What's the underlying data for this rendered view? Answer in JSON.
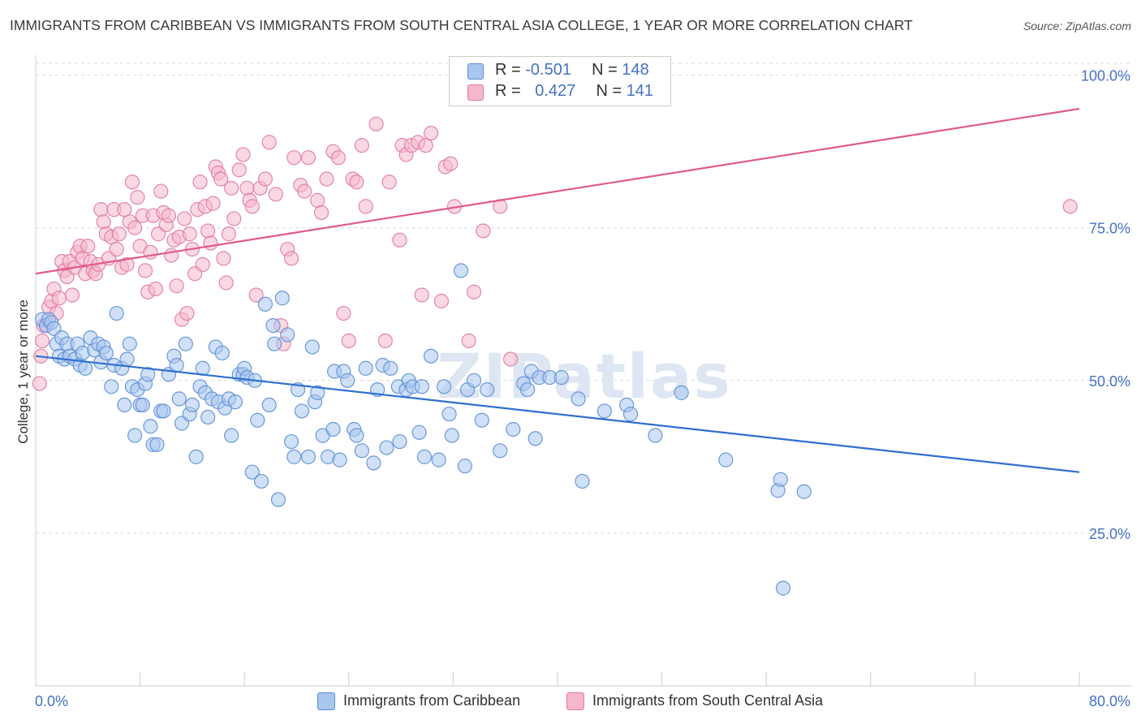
{
  "header": {
    "title": "IMMIGRANTS FROM CARIBBEAN VS IMMIGRANTS FROM SOUTH CENTRAL ASIA COLLEGE, 1 YEAR OR MORE CORRELATION CHART",
    "source": "Source: ZipAtlas.com"
  },
  "watermark": "ZIPatlas",
  "legend": {
    "series": [
      {
        "r_label": "R =",
        "r_value": "-0.501",
        "n_label": "N =",
        "n_value": "148"
      },
      {
        "r_label": "R =",
        "r_value": "0.427",
        "n_label": "N =",
        "n_value": "141"
      }
    ]
  },
  "colors": {
    "blue_fill": "#a9c6ef",
    "blue_stroke": "#5b8fd6",
    "blue_line": "#2e6fd0",
    "pink_fill": "#f5b8cb",
    "pink_stroke": "#e07a9c",
    "pink_line": "#e05a8a",
    "grid": "#d8d8d8",
    "tick_text": "#4472c4"
  },
  "chart_data": {
    "type": "scatter",
    "title": "IMMIGRANTS FROM CARIBBEAN VS IMMIGRANTS FROM SOUTH CENTRAL ASIA COLLEGE, 1 YEAR OR MORE CORRELATION CHART",
    "xlabel": "",
    "ylabel": "College, 1 year or more",
    "xlim": [
      0,
      80
    ],
    "ylim": [
      0,
      105
    ],
    "x_tick_labels": [
      "0.0%",
      "80.0%"
    ],
    "y_ticks": [
      25,
      50,
      75,
      100
    ],
    "y_tick_labels": [
      "25.0%",
      "50.0%",
      "75.0%",
      "100.0%"
    ],
    "grid": true,
    "legend_position": "top-center",
    "series": [
      {
        "name": "Immigrants from Caribbean",
        "color": "#5b8fd6",
        "R": -0.501,
        "N": 148,
        "trend": {
          "x": [
            0,
            80
          ],
          "y": [
            54.0,
            35.0
          ]
        },
        "points": [
          [
            0.5,
            60
          ],
          [
            0.8,
            59
          ],
          [
            1.0,
            60
          ],
          [
            1.2,
            59.5
          ],
          [
            1.4,
            58.5
          ],
          [
            1.6,
            56
          ],
          [
            1.8,
            54
          ],
          [
            2.0,
            57
          ],
          [
            2.2,
            53.5
          ],
          [
            2.4,
            56
          ],
          [
            2.6,
            54
          ],
          [
            3.0,
            53.5
          ],
          [
            3.2,
            56
          ],
          [
            3.4,
            52.5
          ],
          [
            3.6,
            54.5
          ],
          [
            3.8,
            52
          ],
          [
            4.2,
            57
          ],
          [
            4.5,
            55
          ],
          [
            4.8,
            56
          ],
          [
            5.0,
            53
          ],
          [
            5.2,
            55.5
          ],
          [
            5.4,
            54.5
          ],
          [
            5.8,
            49
          ],
          [
            6.0,
            52.5
          ],
          [
            6.2,
            61
          ],
          [
            6.6,
            52
          ],
          [
            6.8,
            46
          ],
          [
            7.0,
            53.5
          ],
          [
            7.2,
            56
          ],
          [
            7.4,
            49
          ],
          [
            7.6,
            41
          ],
          [
            7.8,
            48.5
          ],
          [
            8.0,
            46
          ],
          [
            8.2,
            46
          ],
          [
            8.4,
            49.5
          ],
          [
            8.6,
            51
          ],
          [
            8.8,
            42.5
          ],
          [
            9.0,
            39.5
          ],
          [
            9.3,
            39.5
          ],
          [
            9.6,
            45
          ],
          [
            9.8,
            45
          ],
          [
            10.2,
            51
          ],
          [
            10.6,
            54
          ],
          [
            10.8,
            52.5
          ],
          [
            11.0,
            47
          ],
          [
            11.2,
            43
          ],
          [
            11.5,
            56
          ],
          [
            11.8,
            44.5
          ],
          [
            12.0,
            46
          ],
          [
            12.3,
            37.5
          ],
          [
            12.6,
            49
          ],
          [
            12.8,
            52
          ],
          [
            13.0,
            48
          ],
          [
            13.2,
            44
          ],
          [
            13.5,
            47
          ],
          [
            13.8,
            55.5
          ],
          [
            14.0,
            46.5
          ],
          [
            14.3,
            54.5
          ],
          [
            14.5,
            45.5
          ],
          [
            14.8,
            47
          ],
          [
            15.0,
            41
          ],
          [
            15.3,
            46.5
          ],
          [
            15.6,
            51
          ],
          [
            15.9,
            51
          ],
          [
            16.0,
            52
          ],
          [
            16.2,
            50.5
          ],
          [
            16.6,
            35
          ],
          [
            16.8,
            50
          ],
          [
            17.0,
            43.5
          ],
          [
            17.3,
            33.5
          ],
          [
            17.6,
            62.5
          ],
          [
            17.9,
            46
          ],
          [
            18.2,
            59
          ],
          [
            18.3,
            56
          ],
          [
            18.6,
            30.5
          ],
          [
            18.9,
            63.5
          ],
          [
            19.3,
            57.5
          ],
          [
            19.6,
            40
          ],
          [
            19.8,
            37.5
          ],
          [
            20.1,
            48.5
          ],
          [
            20.4,
            45
          ],
          [
            20.9,
            37.5
          ],
          [
            21.2,
            55.5
          ],
          [
            21.4,
            46.5
          ],
          [
            21.6,
            48
          ],
          [
            22.0,
            41
          ],
          [
            22.4,
            37.5
          ],
          [
            22.8,
            42
          ],
          [
            22.9,
            51.5
          ],
          [
            23.3,
            37
          ],
          [
            23.6,
            51.5
          ],
          [
            23.9,
            50
          ],
          [
            24.4,
            42
          ],
          [
            24.6,
            41
          ],
          [
            25.0,
            38.5
          ],
          [
            25.3,
            52
          ],
          [
            25.9,
            36.5
          ],
          [
            26.2,
            48.5
          ],
          [
            26.6,
            52.5
          ],
          [
            26.9,
            39
          ],
          [
            27.2,
            52
          ],
          [
            27.8,
            49
          ],
          [
            27.9,
            40
          ],
          [
            28.4,
            48.5
          ],
          [
            28.6,
            50
          ],
          [
            28.9,
            49
          ],
          [
            29.4,
            41.5
          ],
          [
            29.6,
            49
          ],
          [
            29.8,
            37.5
          ],
          [
            30.3,
            54
          ],
          [
            30.9,
            37
          ],
          [
            31.3,
            49
          ],
          [
            31.7,
            44.5
          ],
          [
            31.9,
            41
          ],
          [
            32.6,
            68
          ],
          [
            32.9,
            36
          ],
          [
            33.1,
            48.5
          ],
          [
            33.6,
            50
          ],
          [
            34.2,
            43.5
          ],
          [
            34.6,
            48.5
          ],
          [
            35.6,
            38.5
          ],
          [
            36.6,
            42
          ],
          [
            37.4,
            49.5
          ],
          [
            37.7,
            48.5
          ],
          [
            38.0,
            51.5
          ],
          [
            38.3,
            40.5
          ],
          [
            38.6,
            50.5
          ],
          [
            39.4,
            50.5
          ],
          [
            40.3,
            50.5
          ],
          [
            41.6,
            47
          ],
          [
            41.9,
            33.5
          ],
          [
            43.6,
            45
          ],
          [
            45.3,
            46
          ],
          [
            45.6,
            44.5
          ],
          [
            47.5,
            41
          ],
          [
            49.5,
            48
          ],
          [
            52.9,
            37
          ],
          [
            56.9,
            32
          ],
          [
            57.1,
            33.8
          ],
          [
            58.9,
            31.8
          ],
          [
            57.3,
            16
          ]
        ]
      },
      {
        "name": "Immigrants from South Central Asia",
        "color": "#e07a9c",
        "R": 0.427,
        "N": 141,
        "trend": {
          "x": [
            0,
            80
          ],
          "y": [
            67.5,
            94.5
          ]
        },
        "points": [
          [
            0.3,
            49.5
          ],
          [
            0.4,
            54
          ],
          [
            0.5,
            56.5
          ],
          [
            0.6,
            59
          ],
          [
            0.8,
            59
          ],
          [
            1.0,
            62
          ],
          [
            1.2,
            63
          ],
          [
            1.4,
            65
          ],
          [
            1.6,
            61
          ],
          [
            1.8,
            63.5
          ],
          [
            2.0,
            69.5
          ],
          [
            2.2,
            68
          ],
          [
            2.4,
            67
          ],
          [
            2.6,
            69.5
          ],
          [
            2.8,
            64
          ],
          [
            3.0,
            68.5
          ],
          [
            3.2,
            71
          ],
          [
            3.4,
            72
          ],
          [
            3.6,
            70
          ],
          [
            3.8,
            67.5
          ],
          [
            4.0,
            72
          ],
          [
            4.2,
            69.5
          ],
          [
            4.4,
            68
          ],
          [
            4.6,
            67.5
          ],
          [
            4.8,
            69
          ],
          [
            5.0,
            78
          ],
          [
            5.2,
            76
          ],
          [
            5.4,
            74
          ],
          [
            5.6,
            70
          ],
          [
            5.8,
            73.5
          ],
          [
            6.0,
            78
          ],
          [
            6.2,
            71.5
          ],
          [
            6.4,
            74
          ],
          [
            6.6,
            68.5
          ],
          [
            6.8,
            78
          ],
          [
            7.0,
            69
          ],
          [
            7.2,
            76
          ],
          [
            7.4,
            82.5
          ],
          [
            7.6,
            75
          ],
          [
            7.8,
            80
          ],
          [
            8.0,
            72
          ],
          [
            8.2,
            77
          ],
          [
            8.4,
            68
          ],
          [
            8.6,
            64.5
          ],
          [
            8.8,
            71
          ],
          [
            9.0,
            77
          ],
          [
            9.2,
            65
          ],
          [
            9.4,
            74
          ],
          [
            9.6,
            81
          ],
          [
            9.8,
            77.5
          ],
          [
            10.0,
            75.5
          ],
          [
            10.2,
            77
          ],
          [
            10.4,
            70.5
          ],
          [
            10.6,
            73
          ],
          [
            10.8,
            65.5
          ],
          [
            11.0,
            73.5
          ],
          [
            11.2,
            60
          ],
          [
            11.4,
            76.5
          ],
          [
            11.6,
            61
          ],
          [
            11.8,
            74
          ],
          [
            12.0,
            71.5
          ],
          [
            12.2,
            67.5
          ],
          [
            12.4,
            78
          ],
          [
            12.6,
            82.5
          ],
          [
            12.8,
            69
          ],
          [
            13.0,
            78.5
          ],
          [
            13.2,
            74.5
          ],
          [
            13.4,
            72.5
          ],
          [
            13.6,
            79
          ],
          [
            13.8,
            85
          ],
          [
            14.0,
            84
          ],
          [
            14.2,
            83
          ],
          [
            14.4,
            70
          ],
          [
            14.6,
            66
          ],
          [
            14.8,
            74
          ],
          [
            15.0,
            81.5
          ],
          [
            15.2,
            76.5
          ],
          [
            15.6,
            84.5
          ],
          [
            15.9,
            87
          ],
          [
            16.2,
            81.5
          ],
          [
            16.4,
            79.5
          ],
          [
            16.6,
            78.5
          ],
          [
            16.9,
            64
          ],
          [
            17.2,
            81.5
          ],
          [
            17.6,
            83
          ],
          [
            17.9,
            89
          ],
          [
            18.4,
            80.5
          ],
          [
            18.8,
            59
          ],
          [
            19.0,
            56
          ],
          [
            19.3,
            71.5
          ],
          [
            19.6,
            70
          ],
          [
            19.8,
            86.5
          ],
          [
            20.3,
            82
          ],
          [
            20.6,
            81
          ],
          [
            20.9,
            86.5
          ],
          [
            21.6,
            79.5
          ],
          [
            21.9,
            77.5
          ],
          [
            22.3,
            83
          ],
          [
            22.8,
            87.5
          ],
          [
            23.2,
            86.5
          ],
          [
            23.6,
            61
          ],
          [
            24.0,
            56.5
          ],
          [
            24.3,
            83
          ],
          [
            24.6,
            82.5
          ],
          [
            25.0,
            88.5
          ],
          [
            25.3,
            78.5
          ],
          [
            26.1,
            92
          ],
          [
            26.8,
            56.5
          ],
          [
            27.1,
            82.5
          ],
          [
            27.9,
            73
          ],
          [
            28.1,
            88.5
          ],
          [
            28.4,
            87
          ],
          [
            28.8,
            88.5
          ],
          [
            29.3,
            89
          ],
          [
            29.6,
            64
          ],
          [
            29.9,
            88.5
          ],
          [
            30.3,
            90.5
          ],
          [
            31.1,
            63
          ],
          [
            31.4,
            85
          ],
          [
            31.8,
            85.5
          ],
          [
            32.1,
            78.5
          ],
          [
            33.2,
            56.5
          ],
          [
            33.6,
            64.5
          ],
          [
            34.3,
            74.5
          ],
          [
            35.6,
            78.5
          ],
          [
            36.4,
            53.5
          ],
          [
            79.3,
            78.5
          ]
        ]
      }
    ]
  },
  "bottom_legend": [
    {
      "label": "Immigrants from Caribbean"
    },
    {
      "label": "Immigrants from South Central Asia"
    }
  ]
}
